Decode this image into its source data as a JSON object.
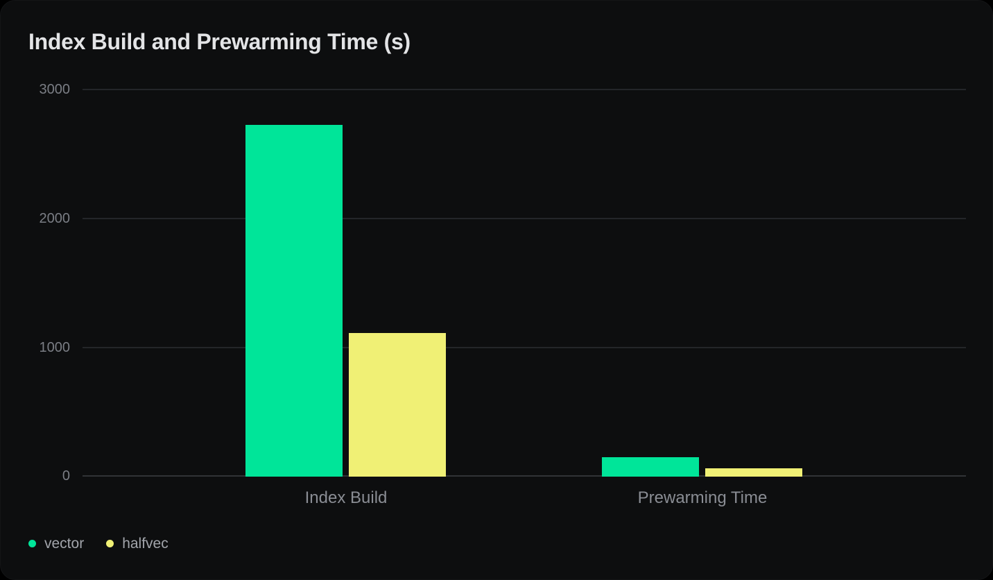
{
  "chart_data": {
    "type": "bar",
    "title": "Index Build and Prewarming Time (s)",
    "categories": [
      "Index Build",
      "Prewarming Time"
    ],
    "series": [
      {
        "name": "vector",
        "color": "#00e599",
        "values": [
          2720,
          150
        ]
      },
      {
        "name": "halfvec",
        "color": "#f0f075",
        "values": [
          1110,
          65
        ]
      }
    ],
    "xlabel": "",
    "ylabel": "",
    "ylim": [
      0,
      3000
    ],
    "yticks": [
      0,
      1000,
      2000,
      3000
    ],
    "grid": true,
    "legend_position": "bottom-left"
  }
}
